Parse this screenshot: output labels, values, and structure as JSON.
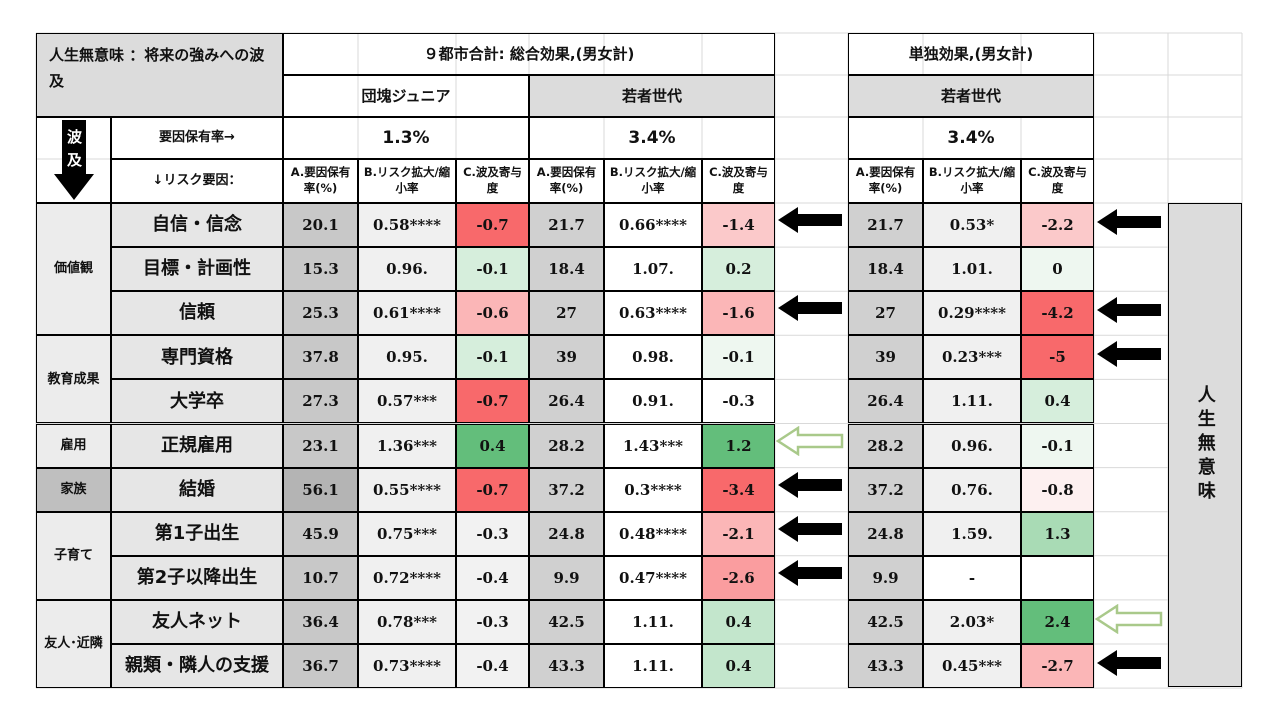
{
  "title": "人生無意味 ：将来の強みへの波及",
  "total_header": "９都市合計: 総合効果,(男女計)",
  "solo_header": "単独効果,(男女計)",
  "groups": {
    "dankai": "団塊ジュニア",
    "young": "若者世代",
    "young2": "若者世代"
  },
  "side_arrow_label": "波及",
  "rate_label": "要因保有率→",
  "risk_label": "↓リスク要因：",
  "rates": {
    "dankai": "1.3%",
    "young": "3.4%",
    "young2": "3.4%"
  },
  "col_heads": {
    "a": "A.要因保有率(%)",
    "b": "B.リスク拡大/縮小率",
    "c": "C.波及寄与度"
  },
  "right_label": "人生無意味",
  "categories": [
    "価値観",
    "教育成果",
    "雇用",
    "家族",
    "子育て",
    "友人･近隣"
  ],
  "rows": [
    {
      "label": "自信・信念",
      "d_a": "20.1",
      "d_b": "0.58****",
      "d_c": "-0.7",
      "y_a": "21.7",
      "y_b": "0.66****",
      "y_c": "-1.4",
      "s_a": "21.7",
      "s_b": "0.53*",
      "s_c": "-2.2"
    },
    {
      "label": "目標・計画性",
      "d_a": "15.3",
      "d_b": "0.96.",
      "d_c": "-0.1",
      "y_a": "18.4",
      "y_b": "1.07.",
      "y_c": "0.2",
      "s_a": "18.4",
      "s_b": "1.01.",
      "s_c": "0"
    },
    {
      "label": "信頼",
      "d_a": "25.3",
      "d_b": "0.61****",
      "d_c": "-0.6",
      "y_a": "27",
      "y_b": "0.63****",
      "y_c": "-1.6",
      "s_a": "27",
      "s_b": "0.29****",
      "s_c": "-4.2"
    },
    {
      "label": "専門資格",
      "d_a": "37.8",
      "d_b": "0.95.",
      "d_c": "-0.1",
      "y_a": "39",
      "y_b": "0.98.",
      "y_c": "-0.1",
      "s_a": "39",
      "s_b": "0.23***",
      "s_c": "-5"
    },
    {
      "label": "大学卒",
      "d_a": "27.3",
      "d_b": "0.57***",
      "d_c": "-0.7",
      "y_a": "26.4",
      "y_b": "0.91.",
      "y_c": "-0.3",
      "s_a": "26.4",
      "s_b": "1.11.",
      "s_c": "0.4"
    },
    {
      "label": "正規雇用",
      "d_a": "23.1",
      "d_b": "1.36***",
      "d_c": "0.4",
      "y_a": "28.2",
      "y_b": "1.43***",
      "y_c": "1.2",
      "s_a": "28.2",
      "s_b": "0.96.",
      "s_c": "-0.1"
    },
    {
      "label": "結婚",
      "d_a": "56.1",
      "d_b": "0.55****",
      "d_c": "-0.7",
      "y_a": "37.2",
      "y_b": "0.3****",
      "y_c": "-3.4",
      "s_a": "37.2",
      "s_b": "0.76.",
      "s_c": "-0.8"
    },
    {
      "label": "第1子出生",
      "d_a": "45.9",
      "d_b": "0.75***",
      "d_c": "-0.3",
      "y_a": "24.8",
      "y_b": "0.48****",
      "y_c": "-2.1",
      "s_a": "24.8",
      "s_b": "1.59.",
      "s_c": "1.3"
    },
    {
      "label": "第2子以降出生",
      "d_a": "10.7",
      "d_b": "0.72****",
      "d_c": "-0.4",
      "y_a": "9.9",
      "y_b": "0.47****",
      "y_c": "-2.6",
      "s_a": "9.9",
      "s_b": "-",
      "s_c": ""
    },
    {
      "label": "友人ネット",
      "d_a": "36.4",
      "d_b": "0.78***",
      "d_c": "-0.3",
      "y_a": "42.5",
      "y_b": "1.11.",
      "y_c": "0.4",
      "s_a": "42.5",
      "s_b": "2.03*",
      "s_c": "2.4"
    },
    {
      "label": "親類・隣人の支援",
      "d_a": "36.7",
      "d_b": "0.73****",
      "d_c": "-0.4",
      "y_a": "43.3",
      "y_b": "1.11.",
      "y_c": "0.4",
      "s_a": "43.3",
      "s_b": "0.45***",
      "s_c": "-2.7"
    }
  ],
  "colors": {
    "strong_red": "#f8696b",
    "light_red": "#fbb6b7",
    "pale_red": "#fde3e3",
    "strong_green": "#63be7b",
    "light_green": "#a9dbb5",
    "pale_green": "#dff2e4",
    "arrow_black": "#000000",
    "arrow_green": "#a9c98a"
  },
  "arrows": {
    "left_col": [
      "black",
      "",
      "black",
      "",
      "",
      "green",
      "black",
      "black",
      "black",
      "",
      ""
    ],
    "right_col": [
      "black",
      "",
      "black",
      "black",
      "",
      "",
      "",
      "",
      "",
      "green",
      "black"
    ]
  }
}
